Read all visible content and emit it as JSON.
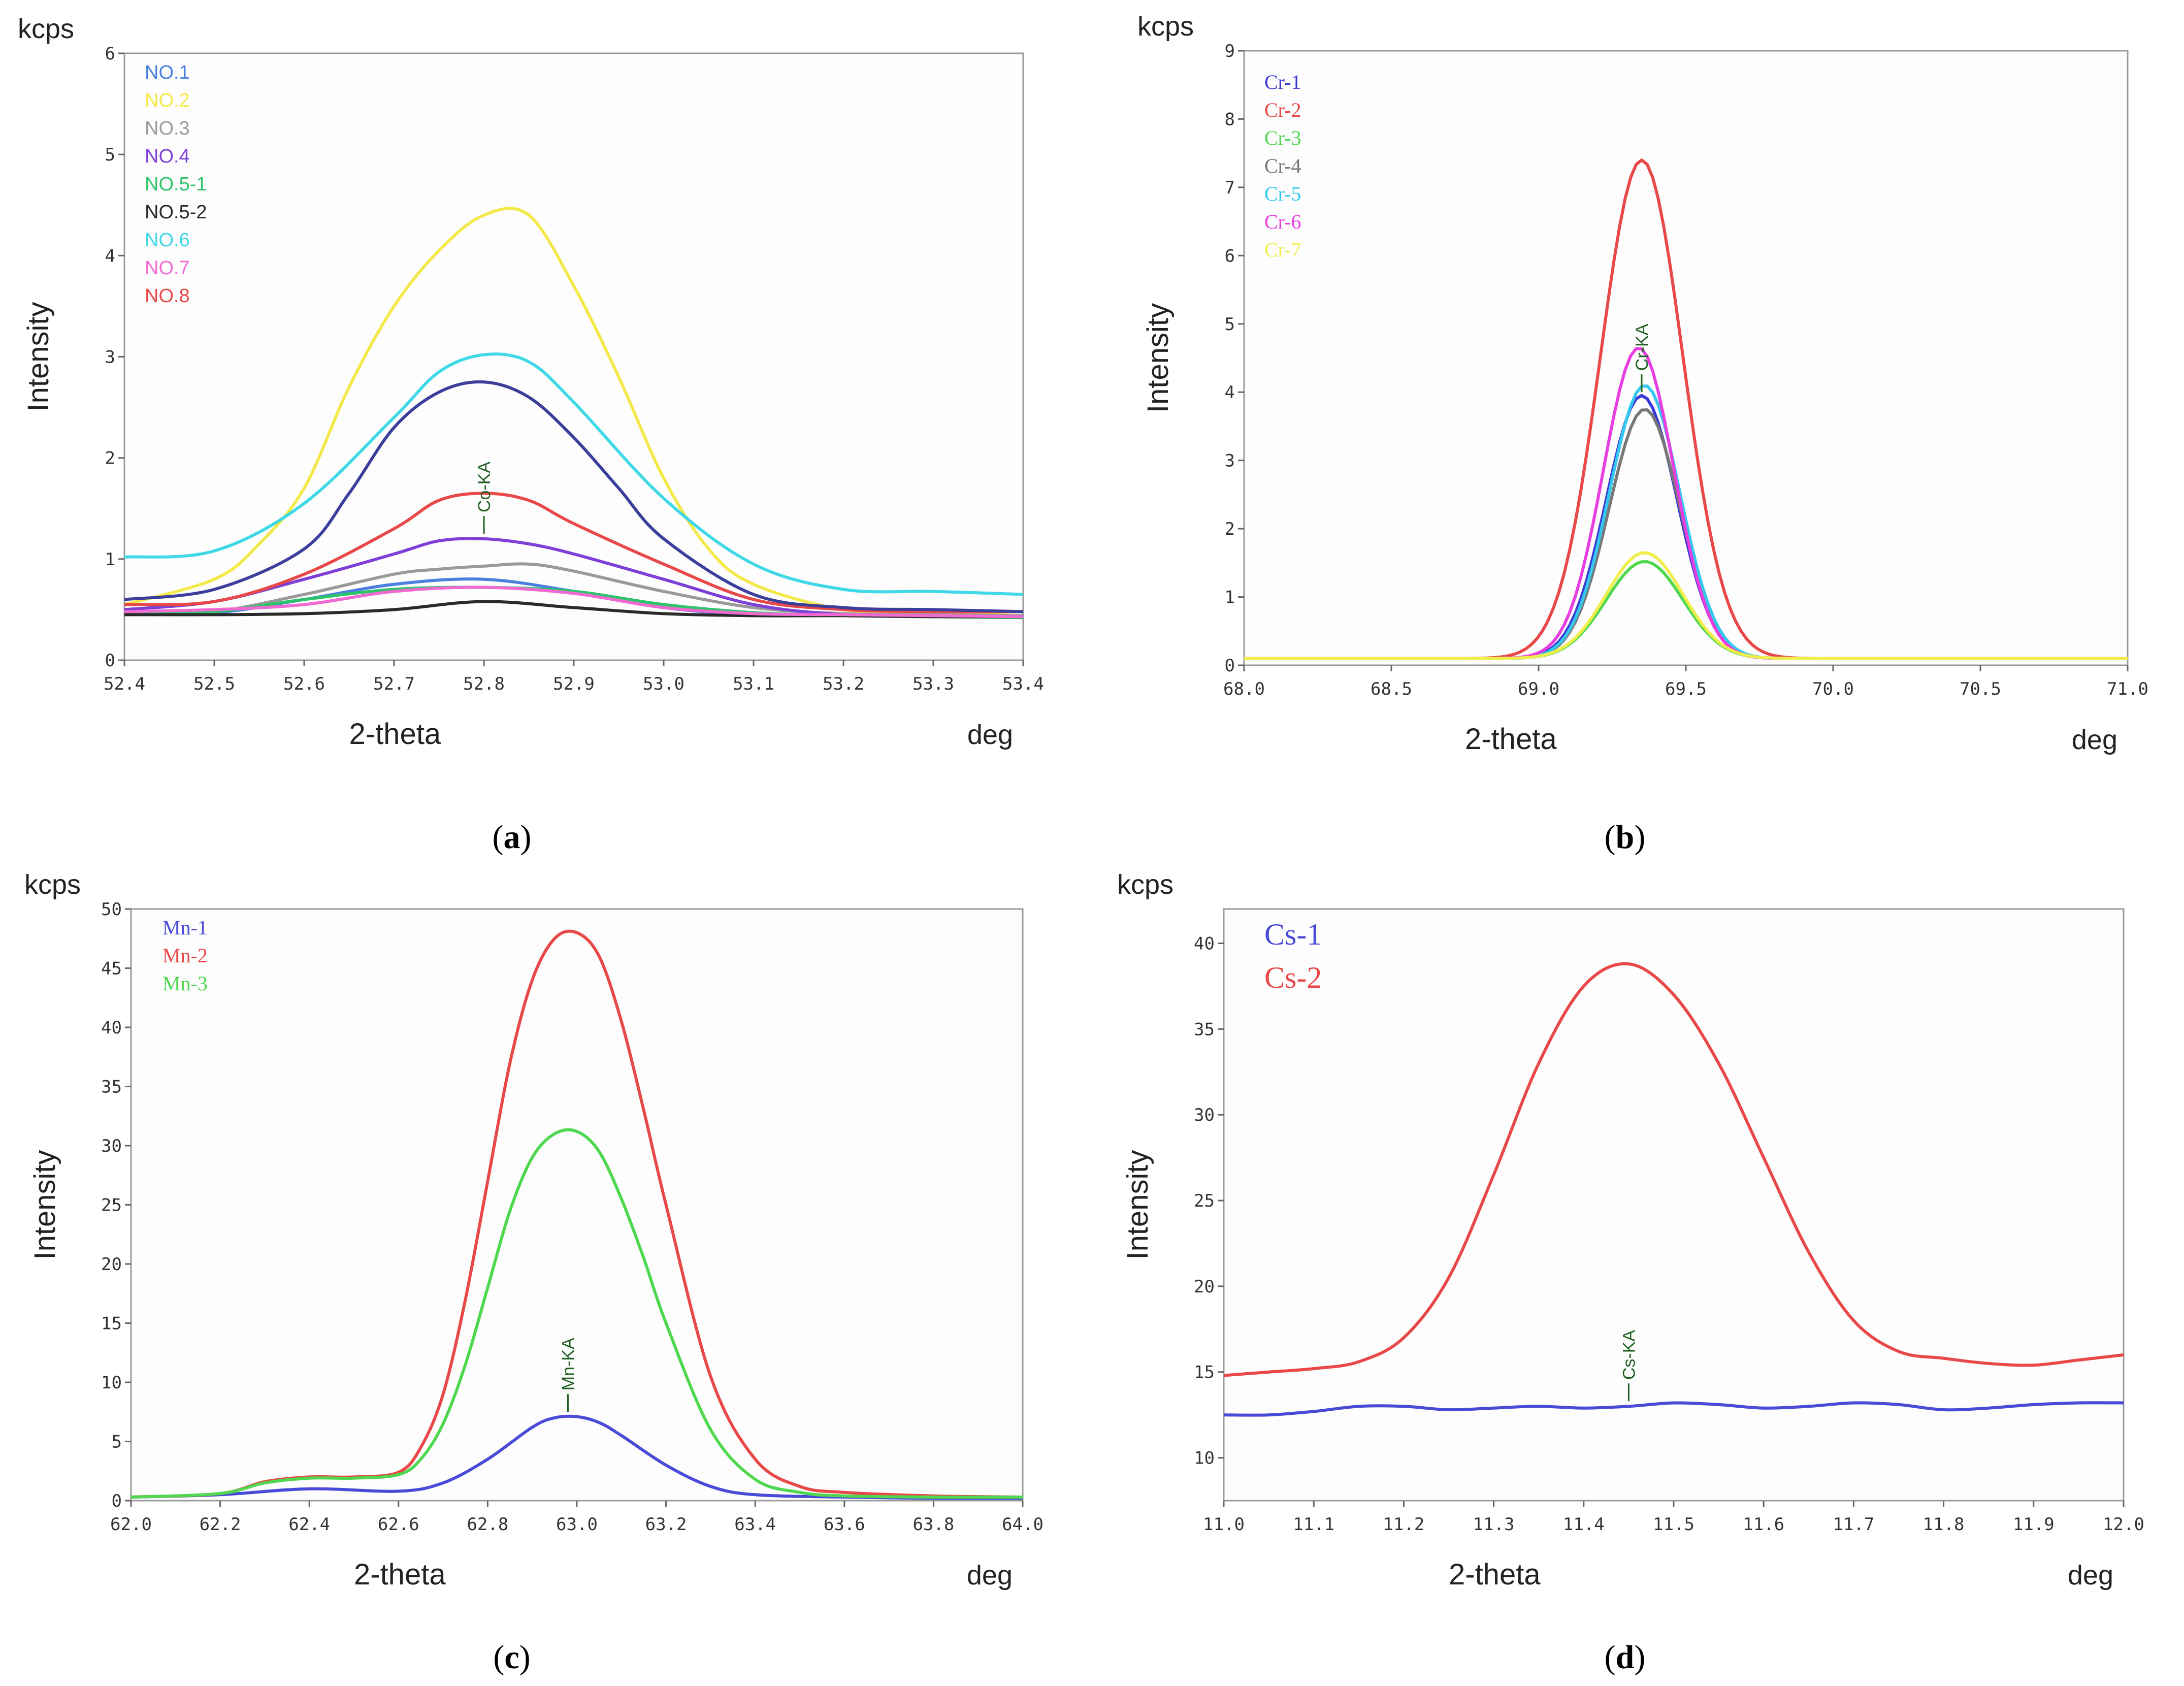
{
  "chart_data": [
    {
      "id": "a",
      "type": "line",
      "caption_letter": "a",
      "unit_y": "kcps",
      "ylabel": "Intensity",
      "xlabel": "2-theta",
      "unit_x": "deg",
      "xlim": [
        52.4,
        53.4
      ],
      "ylim": [
        0,
        6
      ],
      "xticks": [
        52.4,
        52.5,
        52.6,
        52.7,
        52.8,
        52.9,
        53.0,
        53.1,
        53.2,
        53.3,
        53.4
      ],
      "xtick_labels": [
        "52.4",
        "52.5",
        "52.6",
        "52.7",
        "52.8",
        "52.9",
        "53.0",
        "53.1",
        "53.2",
        "53.3",
        "53.4"
      ],
      "yticks": [
        0,
        1,
        2,
        3,
        4,
        5,
        6
      ],
      "ytick_labels": [
        "0",
        "1",
        "2",
        "3",
        "4",
        "5",
        "6"
      ],
      "peak_label": {
        "text": "Co-KA",
        "x": 52.8,
        "y": 1.25
      },
      "legend_style": "sans",
      "series": [
        {
          "name": "NO.1",
          "color": "#4a7fe0",
          "x": [
            52.4,
            52.5,
            52.6,
            52.7,
            52.8,
            52.9,
            53.0,
            53.1,
            53.2,
            53.3,
            53.4
          ],
          "y": [
            0.48,
            0.47,
            0.6,
            0.75,
            0.8,
            0.68,
            0.52,
            0.45,
            0.45,
            0.44,
            0.43
          ]
        },
        {
          "name": "NO.2",
          "color": "#f3e94a",
          "x": [
            52.4,
            52.5,
            52.55,
            52.6,
            52.65,
            52.7,
            52.75,
            52.8,
            52.85,
            52.9,
            52.95,
            53.0,
            53.05,
            53.1,
            53.2,
            53.3,
            53.4
          ],
          "y": [
            0.55,
            0.8,
            1.15,
            1.7,
            2.7,
            3.5,
            4.05,
            4.4,
            4.4,
            3.7,
            2.8,
            1.8,
            1.1,
            0.75,
            0.5,
            0.46,
            0.48
          ]
        },
        {
          "name": "NO.3",
          "color": "#9a9a9a",
          "x": [
            52.4,
            52.5,
            52.6,
            52.7,
            52.75,
            52.8,
            52.85,
            52.9,
            53.0,
            53.1,
            53.2,
            53.3,
            53.4
          ],
          "y": [
            0.45,
            0.48,
            0.65,
            0.85,
            0.9,
            0.93,
            0.95,
            0.88,
            0.68,
            0.52,
            0.46,
            0.45,
            0.44
          ]
        },
        {
          "name": "NO.4",
          "color": "#7d3fd6",
          "x": [
            52.4,
            52.5,
            52.6,
            52.7,
            52.75,
            52.8,
            52.85,
            52.9,
            53.0,
            53.1,
            53.2,
            53.3,
            53.4
          ],
          "y": [
            0.5,
            0.58,
            0.8,
            1.05,
            1.18,
            1.2,
            1.15,
            1.05,
            0.8,
            0.55,
            0.45,
            0.44,
            0.42
          ]
        },
        {
          "name": "NO.5-1",
          "color": "#2fc46a",
          "x": [
            52.4,
            52.5,
            52.6,
            52.7,
            52.8,
            52.9,
            53.0,
            53.1,
            53.2,
            53.3,
            53.4
          ],
          "y": [
            0.45,
            0.48,
            0.6,
            0.7,
            0.72,
            0.68,
            0.55,
            0.47,
            0.44,
            0.43,
            0.42
          ]
        },
        {
          "name": "NO.5-2",
          "color": "#2a2a2a",
          "x": [
            52.4,
            52.5,
            52.6,
            52.7,
            52.8,
            52.9,
            53.0,
            53.1,
            53.2,
            53.3,
            53.4
          ],
          "y": [
            0.45,
            0.45,
            0.46,
            0.5,
            0.58,
            0.52,
            0.46,
            0.44,
            0.44,
            0.43,
            0.43
          ]
        },
        {
          "name": "NO.6",
          "color": "#3ed8e6",
          "x": [
            52.4,
            52.5,
            52.6,
            52.7,
            52.75,
            52.8,
            52.85,
            52.9,
            53.0,
            53.1,
            53.2,
            53.3,
            53.4
          ],
          "y": [
            1.02,
            1.08,
            1.55,
            2.4,
            2.85,
            3.02,
            2.95,
            2.55,
            1.6,
            0.95,
            0.7,
            0.68,
            0.65
          ]
        },
        {
          "name": "NO.7",
          "color": "#f06ad2",
          "x": [
            52.4,
            52.5,
            52.6,
            52.7,
            52.8,
            52.9,
            53.0,
            53.1,
            53.2,
            53.3,
            53.4
          ],
          "y": [
            0.48,
            0.5,
            0.55,
            0.68,
            0.72,
            0.66,
            0.52,
            0.46,
            0.45,
            0.44,
            0.43
          ]
        },
        {
          "name": "NO.8",
          "color": "#e84848",
          "x": [
            52.4,
            52.5,
            52.6,
            52.7,
            52.75,
            52.8,
            52.85,
            52.9,
            53.0,
            53.1,
            53.2,
            53.3,
            53.4
          ],
          "y": [
            0.55,
            0.58,
            0.85,
            1.3,
            1.58,
            1.65,
            1.58,
            1.35,
            0.95,
            0.6,
            0.5,
            0.48,
            0.48
          ]
        },
        {
          "name": "",
          "color": "#3b3e9a",
          "x": [
            52.4,
            52.5,
            52.6,
            52.65,
            52.7,
            52.75,
            52.8,
            52.85,
            52.9,
            52.95,
            53.0,
            53.1,
            53.2,
            53.3,
            53.4
          ],
          "y": [
            0.6,
            0.7,
            1.1,
            1.65,
            2.3,
            2.65,
            2.75,
            2.6,
            2.2,
            1.7,
            1.2,
            0.65,
            0.52,
            0.5,
            0.48
          ]
        }
      ]
    },
    {
      "id": "b",
      "type": "line",
      "caption_letter": "b",
      "unit_y": "kcps",
      "ylabel": "Intensity",
      "xlabel": "2-theta",
      "unit_x": "deg",
      "xlim": [
        68.0,
        71.0
      ],
      "ylim": [
        0,
        9
      ],
      "xticks": [
        68.0,
        68.5,
        69.0,
        69.5,
        70.0,
        70.5,
        71.0
      ],
      "xtick_labels": [
        "68.0",
        "68.5",
        "69.0",
        "69.5",
        "70.0",
        "70.5",
        "71.0"
      ],
      "yticks": [
        0,
        1,
        2,
        3,
        4,
        5,
        6,
        7,
        8,
        9
      ],
      "ytick_labels": [
        "0",
        "1",
        "2",
        "3",
        "4",
        "5",
        "6",
        "7",
        "8",
        "9"
      ],
      "peak_label": {
        "text": "Cr-KA",
        "x": 69.35,
        "y": 4.0
      },
      "legend_style": "serif",
      "series": [
        {
          "name": "Cr-1",
          "color": "#3a3ad6",
          "peak": 3.95,
          "center": 69.35,
          "width": 0.12
        },
        {
          "name": "Cr-2",
          "color": "#e84848",
          "peak": 7.4,
          "center": 69.35,
          "width": 0.14
        },
        {
          "name": "Cr-3",
          "color": "#4fd84f",
          "peak": 1.52,
          "center": 69.36,
          "width": 0.13
        },
        {
          "name": "Cr-4",
          "color": "#777777",
          "peak": 3.75,
          "center": 69.36,
          "width": 0.12
        },
        {
          "name": "Cr-5",
          "color": "#35c8ef",
          "peak": 4.1,
          "center": 69.36,
          "width": 0.12
        },
        {
          "name": "Cr-6",
          "color": "#e83ee0",
          "peak": 4.65,
          "center": 69.34,
          "width": 0.12
        },
        {
          "name": "Cr-7",
          "color": "#f0ee4a",
          "peak": 1.65,
          "center": 69.36,
          "width": 0.13
        }
      ],
      "legend_labels": [
        "Cr-1",
        "Cr-2",
        "Cr-3",
        "Cr-4",
        "Cr-5",
        "Cr-6",
        "Cr-7"
      ],
      "baseline": 0.1
    },
    {
      "id": "c",
      "type": "line",
      "caption_letter": "c",
      "unit_y": "kcps",
      "ylabel": "Intensity",
      "xlabel": "2-theta",
      "unit_x": "deg",
      "xlim": [
        62.0,
        64.0
      ],
      "ylim": [
        0,
        50
      ],
      "xticks": [
        62.0,
        62.2,
        62.4,
        62.6,
        62.8,
        63.0,
        63.2,
        63.4,
        63.6,
        63.8,
        64.0
      ],
      "xtick_labels": [
        "62.0",
        "62.2",
        "62.4",
        "62.6",
        "62.8",
        "63.0",
        "63.2",
        "63.4",
        "63.6",
        "63.8",
        "64.0"
      ],
      "yticks": [
        0,
        5,
        10,
        15,
        20,
        25,
        30,
        35,
        40,
        45,
        50
      ],
      "ytick_labels": [
        "0",
        "5",
        "10",
        "15",
        "20",
        "25",
        "30",
        "35",
        "40",
        "45",
        "50"
      ],
      "peak_label": {
        "text": "Mn-KA",
        "x": 62.98,
        "y": 7.5
      },
      "legend_style": "serif",
      "series": [
        {
          "name": "Mn-1",
          "color": "#4a4ad8",
          "x": [
            62.0,
            62.2,
            62.4,
            62.6,
            62.7,
            62.8,
            62.9,
            62.95,
            63.0,
            63.05,
            63.1,
            63.2,
            63.3,
            63.4,
            63.6,
            63.8,
            64.0
          ],
          "y": [
            0.3,
            0.5,
            1.0,
            0.8,
            1.5,
            3.5,
            6.2,
            7.0,
            7.1,
            6.6,
            5.5,
            3.0,
            1.2,
            0.5,
            0.3,
            0.2,
            0.2
          ]
        },
        {
          "name": "Mn-2",
          "color": "#e84848",
          "x": [
            62.0,
            62.2,
            62.3,
            62.4,
            62.5,
            62.6,
            62.65,
            62.7,
            62.75,
            62.8,
            62.85,
            62.9,
            62.95,
            63.0,
            63.05,
            63.1,
            63.15,
            63.2,
            63.3,
            63.4,
            63.5,
            63.6,
            63.8,
            64.0
          ],
          "y": [
            0.3,
            0.6,
            1.6,
            2.0,
            2.0,
            2.4,
            4.5,
            9.0,
            17.0,
            27.0,
            37.0,
            44.0,
            47.5,
            48.0,
            46.0,
            40.5,
            33.0,
            25.0,
            10.5,
            3.5,
            1.2,
            0.7,
            0.4,
            0.3
          ]
        },
        {
          "name": "Mn-3",
          "color": "#4fd84f",
          "x": [
            62.0,
            62.2,
            62.3,
            62.4,
            62.5,
            62.6,
            62.65,
            62.7,
            62.75,
            62.8,
            62.85,
            62.9,
            62.95,
            63.0,
            63.05,
            63.1,
            63.15,
            63.2,
            63.3,
            63.4,
            63.5,
            63.6,
            63.8,
            64.0
          ],
          "y": [
            0.3,
            0.6,
            1.5,
            1.9,
            1.9,
            2.2,
            3.5,
            6.5,
            11.5,
            18.0,
            24.5,
            29.0,
            31.0,
            31.2,
            29.5,
            25.5,
            20.5,
            15.0,
            6.0,
            1.8,
            0.7,
            0.4,
            0.3,
            0.3
          ]
        }
      ]
    },
    {
      "id": "d",
      "type": "line",
      "caption_letter": "d",
      "unit_y": "kcps",
      "ylabel": "Intensity",
      "xlabel": "2-theta",
      "unit_x": "deg",
      "xlim": [
        11.0,
        12.0
      ],
      "ylim": [
        7.5,
        42
      ],
      "xticks": [
        11.0,
        11.1,
        11.2,
        11.3,
        11.4,
        11.5,
        11.6,
        11.7,
        11.8,
        11.9,
        12.0
      ],
      "xtick_labels": [
        "11.0",
        "11.1",
        "11.2",
        "11.3",
        "11.4",
        "11.5",
        "11.6",
        "11.7",
        "11.8",
        "11.9",
        "12.0"
      ],
      "yticks": [
        10,
        15,
        20,
        25,
        30,
        35,
        40
      ],
      "ytick_labels": [
        "10",
        "15",
        "20",
        "25",
        "30",
        "35",
        "40"
      ],
      "peak_label": {
        "text": "Cs-KA",
        "x": 11.45,
        "y": 13.3
      },
      "legend_style": "serif-big",
      "series": [
        {
          "name": "Cs-1",
          "color": "#4a4ad8",
          "x": [
            11.0,
            11.05,
            11.1,
            11.15,
            11.2,
            11.25,
            11.3,
            11.35,
            11.4,
            11.45,
            11.5,
            11.55,
            11.6,
            11.65,
            11.7,
            11.75,
            11.8,
            11.85,
            11.9,
            11.95,
            12.0
          ],
          "y": [
            12.5,
            12.5,
            12.7,
            13.0,
            13.0,
            12.8,
            12.9,
            13.0,
            12.9,
            13.0,
            13.2,
            13.1,
            12.9,
            13.0,
            13.2,
            13.1,
            12.8,
            12.9,
            13.1,
            13.2,
            13.2
          ]
        },
        {
          "name": "Cs-2",
          "color": "#e84848",
          "x": [
            11.0,
            11.05,
            11.1,
            11.15,
            11.2,
            11.25,
            11.3,
            11.35,
            11.4,
            11.45,
            11.5,
            11.55,
            11.6,
            11.65,
            11.7,
            11.75,
            11.8,
            11.85,
            11.9,
            11.95,
            12.0
          ],
          "y": [
            14.8,
            15.0,
            15.2,
            15.6,
            17.0,
            20.5,
            26.5,
            33.0,
            37.5,
            38.8,
            37.0,
            33.0,
            27.5,
            22.0,
            18.0,
            16.2,
            15.8,
            15.5,
            15.4,
            15.7,
            16.0
          ]
        }
      ]
    }
  ]
}
